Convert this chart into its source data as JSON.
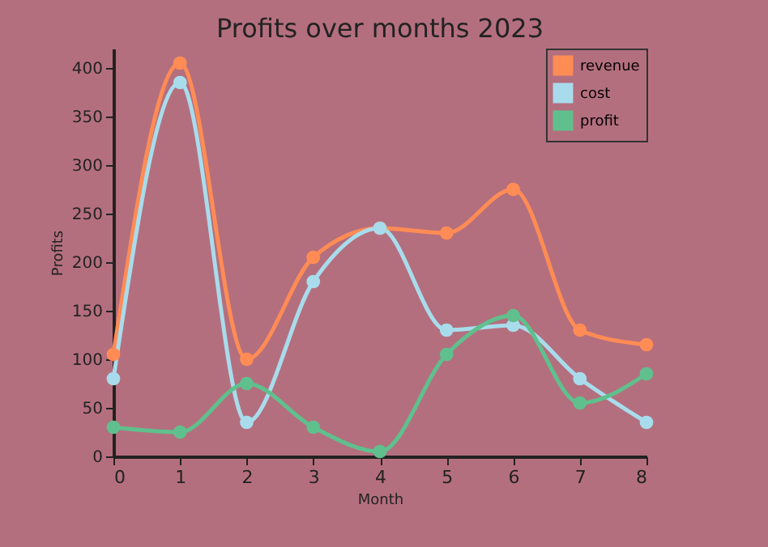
{
  "chart_data": {
    "type": "line",
    "title": "Profits over months 2023",
    "xlabel": "Month",
    "ylabel": "Profits",
    "x": [
      0,
      1,
      2,
      3,
      4,
      5,
      6,
      7,
      8
    ],
    "series": [
      {
        "name": "revenue",
        "color": "#ff8c55",
        "values": [
          105,
          405,
          100,
          205,
          235,
          230,
          275,
          130,
          115
        ]
      },
      {
        "name": "cost",
        "color": "#a8dcec",
        "values": [
          80,
          385,
          35,
          180,
          235,
          130,
          135,
          80,
          35
        ]
      },
      {
        "name": "profit",
        "color": "#5fc08e",
        "values": [
          30,
          25,
          75,
          30,
          5,
          105,
          145,
          55,
          85
        ]
      }
    ],
    "xlim": [
      0,
      8
    ],
    "xticks": [
      0,
      1,
      2,
      3,
      4,
      5,
      6,
      7,
      8
    ],
    "ylim": [
      0,
      420
    ],
    "yticks": [
      0,
      50,
      100,
      150,
      200,
      250,
      300,
      350,
      400
    ],
    "grid": false,
    "legend": "top right",
    "marker": "circle",
    "line_style": "solid"
  }
}
